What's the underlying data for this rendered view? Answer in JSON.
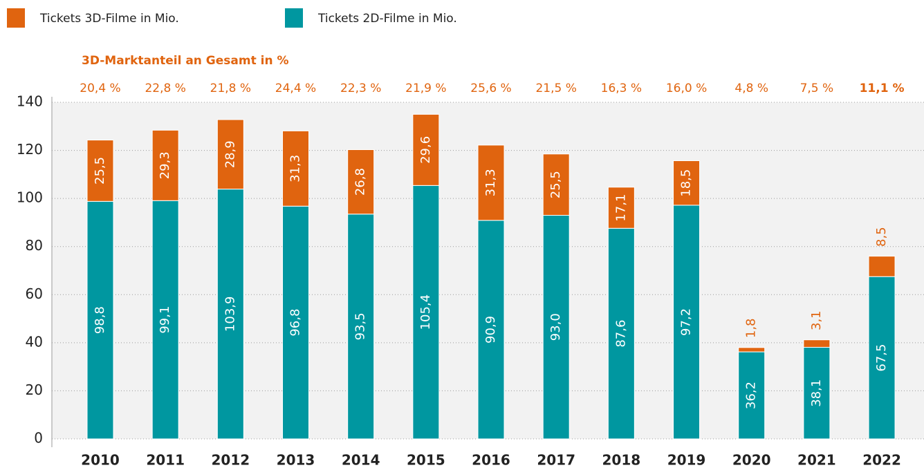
{
  "chart_data": {
    "type": "stacked_bar",
    "subtitle": "3D-Marktanteil an Gesamt in %",
    "categories": [
      "2010",
      "2011",
      "2012",
      "2013",
      "2014",
      "2015",
      "2016",
      "2017",
      "2018",
      "2019",
      "2020",
      "2021",
      "2022"
    ],
    "series": [
      {
        "name": "Tickets 2D-Filme in Mio.",
        "color": "#0097a0",
        "values": [
          98.8,
          99.1,
          103.9,
          96.8,
          93.5,
          105.4,
          90.9,
          93.0,
          87.6,
          97.2,
          36.2,
          38.1,
          67.5
        ],
        "value_labels": [
          "98,8",
          "99,1",
          "103,9",
          "96,8",
          "93,5",
          "105,4",
          "90,9",
          "93,0",
          "87,6",
          "97,2",
          "36,2",
          "38,1",
          "67,5"
        ]
      },
      {
        "name": "Tickets 3D-Filme in Mio.",
        "color": "#e0640f",
        "values": [
          25.5,
          29.3,
          28.9,
          31.3,
          26.8,
          29.6,
          31.3,
          25.5,
          17.1,
          18.5,
          1.8,
          3.1,
          8.5
        ],
        "value_labels": [
          "25,5",
          "29,3",
          "28,9",
          "31,3",
          "26,8",
          "29,6",
          "31,3",
          "25,5",
          "17,1",
          "18,5",
          "1,8",
          "3,1",
          "8,5"
        ]
      }
    ],
    "shares": {
      "values": [
        20.4,
        22.8,
        21.8,
        24.4,
        22.3,
        21.9,
        25.6,
        21.5,
        16.3,
        16.0,
        4.8,
        7.5,
        11.1
      ],
      "value_labels": [
        "20,4 %",
        "22,8 %",
        "21,8 %",
        "24,4 %",
        "22,3 %",
        "21,9 %",
        "25,6 %",
        "21,5 %",
        "16,3 %",
        "16,0 %",
        "4,8 %",
        "7,5 %",
        "11,1 %"
      ]
    },
    "ylim": [
      0,
      140
    ],
    "yticks": [
      0,
      20,
      40,
      60,
      80,
      100,
      120,
      140
    ],
    "grid": true
  }
}
